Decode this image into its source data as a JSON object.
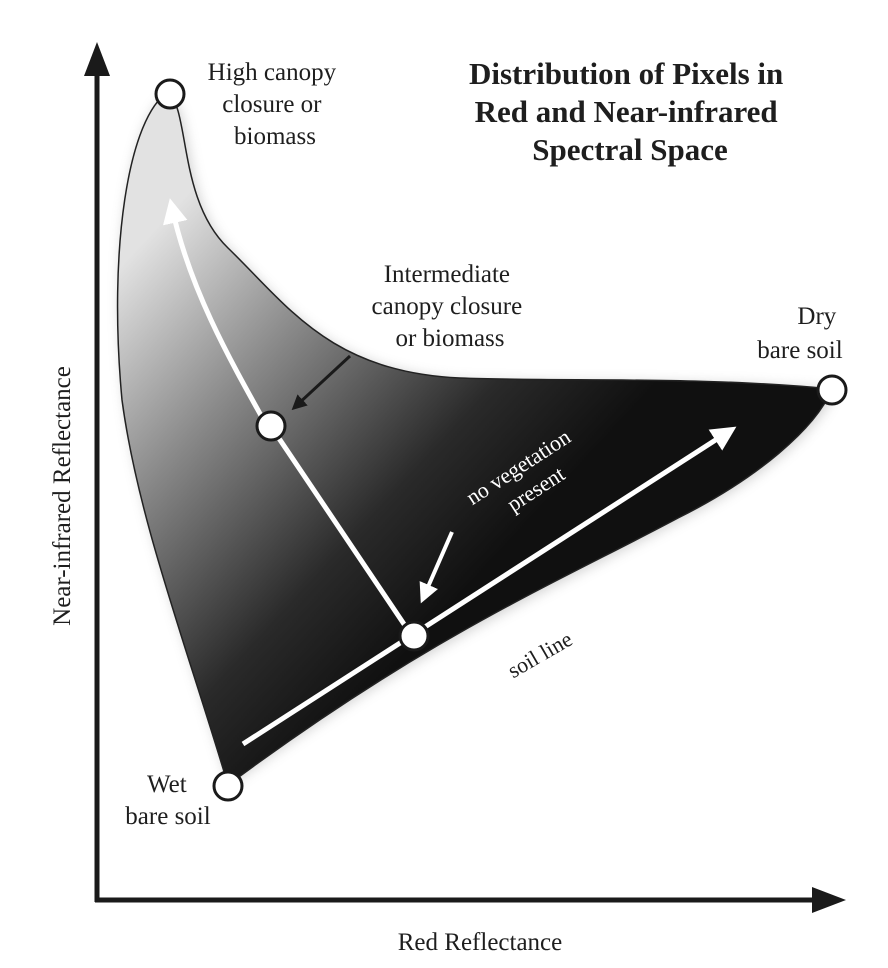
{
  "title": {
    "lines": [
      "Distribution of Pixels in",
      "Red and Near-infrared",
      "Spectral Space"
    ]
  },
  "axes": {
    "x_label": "Red Reflectance",
    "y_label": "Near-infrared Reflectance"
  },
  "points": {
    "high_canopy": {
      "lines": [
        "High canopy",
        "closure or",
        "biomass"
      ]
    },
    "intermediate": {
      "lines": [
        "Intermediate",
        "canopy closure",
        "or biomass"
      ]
    },
    "dry_soil": {
      "lines": [
        "Dry",
        "bare soil"
      ]
    },
    "wet_soil": {
      "lines": [
        "Wet",
        "bare soil"
      ]
    }
  },
  "annotations": {
    "no_vegetation": {
      "lines": [
        "no vegetation",
        "present"
      ]
    },
    "soil_line": "soil line"
  },
  "colors": {
    "region_dark": "#111111",
    "region_light": "#d9d9d9",
    "marker_fill": "#ffffff",
    "axis": "#1a1a1a"
  }
}
